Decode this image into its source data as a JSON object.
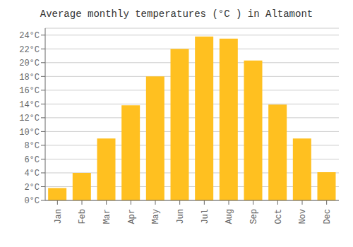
{
  "chart_data": {
    "type": "bar",
    "title": "Average monthly temperatures (°C ) in Altamont",
    "categories": [
      "Jan",
      "Feb",
      "Mar",
      "Apr",
      "May",
      "Jun",
      "Jul",
      "Aug",
      "Sep",
      "Oct",
      "Nov",
      "Dec"
    ],
    "values": [
      1.8,
      4.0,
      9.0,
      13.8,
      18.0,
      22.0,
      23.8,
      23.5,
      20.3,
      13.9,
      9.0,
      4.1
    ],
    "color": "#FFC020",
    "ylim": [
      0,
      25
    ],
    "yticks": [
      {
        "value": 0,
        "label": "0°C"
      },
      {
        "value": 2,
        "label": "2°C"
      },
      {
        "value": 4,
        "label": "4°C"
      },
      {
        "value": 6,
        "label": "6°C"
      },
      {
        "value": 8,
        "label": "8°C"
      },
      {
        "value": 10,
        "label": "10°C"
      },
      {
        "value": 12,
        "label": "12°C"
      },
      {
        "value": 14,
        "label": "14°C"
      },
      {
        "value": 16,
        "label": "16°C"
      },
      {
        "value": 18,
        "label": "18°C"
      },
      {
        "value": 20,
        "label": "20°C"
      },
      {
        "value": 22,
        "label": "22°C"
      },
      {
        "value": 24,
        "label": "24°C"
      }
    ],
    "grid": true
  }
}
